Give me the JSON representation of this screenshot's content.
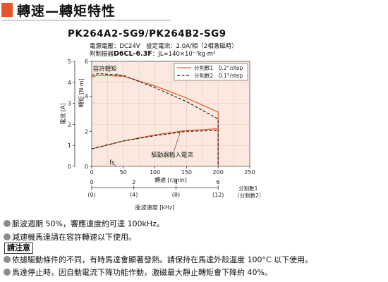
{
  "heading": {
    "title": "轉速—轉矩特性",
    "accent_color": "#e8542b"
  },
  "model": "PK264A2-SG9/PK264B2-SG9",
  "specs": {
    "line1": "電源電壓：DC24V　設定電流：2.0A/相（2相激磁時）",
    "line2_prefix": "附制振器",
    "line2_damper": "D6CL-6.3F",
    "line2_suffix": "：JL=140×10⁻⁷kg·m²"
  },
  "chart_data": {
    "type": "line",
    "x": {
      "label": "轉速 [r/min]",
      "lim": [
        0,
        250
      ],
      "ticks": [
        0,
        50,
        100,
        150,
        200,
        250
      ]
    },
    "y_torque": {
      "label": "轉矩 [N·m]",
      "lim": [
        0,
        6
      ],
      "ticks": [
        0,
        2,
        4,
        6
      ]
    },
    "y_current": {
      "label": "電流 [A]",
      "lim": [
        0,
        5
      ],
      "ticks": [
        0,
        1,
        2,
        3,
        4,
        5
      ]
    },
    "pulse_axis": {
      "label": "脈波速度 [kHz]",
      "ticks": [
        {
          "speed": 0,
          "top": "0",
          "bottom": "(0)"
        },
        {
          "speed": 66.7,
          "top": "2",
          "bottom": "(4)"
        },
        {
          "speed": 133.3,
          "top": "4",
          "bottom": "(8)"
        },
        {
          "speed": 200,
          "top": "6",
          "bottom": "(12)"
        }
      ],
      "top_label": "分割數1",
      "bottom_label": "（分割數2）"
    },
    "legend": [
      {
        "name": "分割數1　0.2°/step",
        "style": "solid",
        "color": "#e8542b"
      },
      {
        "name": "分割數2　0.1°/step",
        "style": "dashed",
        "color": "#222222"
      }
    ],
    "series": [
      {
        "name": "容許轉矩 分割數1",
        "axis": "torque",
        "style": "solid",
        "color": "#e8542b",
        "points": [
          [
            0,
            5.1
          ],
          [
            10,
            5.2
          ],
          [
            50,
            5.15
          ],
          [
            100,
            4.6
          ],
          [
            150,
            3.9
          ],
          [
            200,
            3.1
          ],
          [
            200,
            0
          ]
        ]
      },
      {
        "name": "容許轉矩 分割數2",
        "axis": "torque",
        "style": "dashed",
        "color": "#222222",
        "points": [
          [
            0,
            5.2
          ],
          [
            10,
            5.3
          ],
          [
            50,
            5.2
          ],
          [
            100,
            4.5
          ],
          [
            150,
            3.7
          ],
          [
            200,
            2.7
          ],
          [
            200,
            0
          ]
        ]
      },
      {
        "name": "驅動器輸入電流 分割數1",
        "axis": "torque",
        "style": "solid",
        "color": "#e8542b",
        "points": [
          [
            0,
            1.0
          ],
          [
            50,
            1.45
          ],
          [
            100,
            1.8
          ],
          [
            150,
            2.05
          ],
          [
            200,
            2.15
          ]
        ]
      },
      {
        "name": "驅動器輸入電流 分割數2",
        "axis": "torque",
        "style": "dashed",
        "color": "#222222",
        "points": [
          [
            0,
            1.0
          ],
          [
            50,
            1.45
          ],
          [
            100,
            1.75
          ],
          [
            150,
            2.0
          ],
          [
            200,
            2.05
          ]
        ]
      }
    ],
    "annotations": {
      "permissible_torque": "容許轉矩",
      "input_current": "驅動器輸入電流",
      "fs": "fs"
    },
    "grid_color": "#e8c9b8",
    "plot_bg": "#fbe9df"
  },
  "notes": {
    "n1": "脈波週期 50%，響應速度約可達 100kHz。",
    "n2": "減速機馬達請在容許轉速以下使用。",
    "caution": "請注意",
    "n4": "依據驅動條件的不同，有時馬達會顯著發熱。請保持在馬達外殼溫度 100°C 以下使用。",
    "n5": "馬達停止時，因自動電流下降功能作動，激磁最大靜止轉矩會下降約 40%。"
  }
}
